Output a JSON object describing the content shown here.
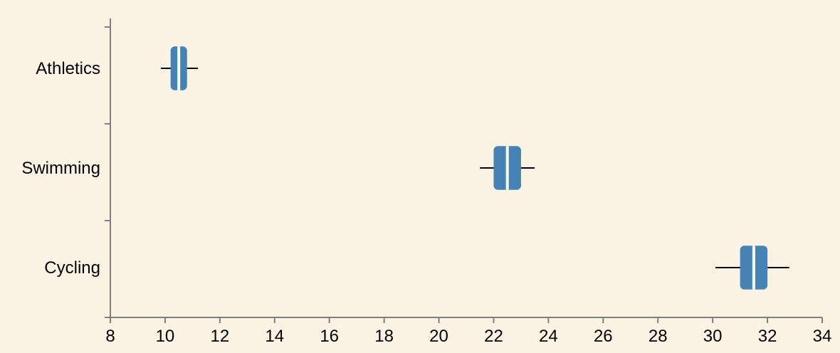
{
  "chart_data": {
    "type": "box",
    "orientation": "horizontal",
    "title": "",
    "xlabel": "",
    "ylabel": "",
    "xlim": [
      8,
      34
    ],
    "x_ticks": [
      8,
      10,
      12,
      14,
      16,
      18,
      20,
      22,
      24,
      26,
      28,
      30,
      32,
      34
    ],
    "grid": false,
    "categories": [
      "Athletics",
      "Swimming",
      "Cycling"
    ],
    "boxes": [
      {
        "category": "Athletics",
        "whisker_low": 9.85,
        "q1": 10.2,
        "median": 10.5,
        "q3": 10.8,
        "whisker_high": 11.2
      },
      {
        "category": "Swimming",
        "whisker_low": 21.5,
        "q1": 22.0,
        "median": 22.5,
        "q3": 23.0,
        "whisker_high": 23.5
      },
      {
        "category": "Cycling",
        "whisker_low": 30.1,
        "q1": 31.0,
        "median": 31.5,
        "q3": 32.0,
        "whisker_high": 32.8
      }
    ],
    "box_color": "#4682b4",
    "median_color": "#ffffff",
    "whisker_color": "#000000",
    "axis_color": "#7f7f7f",
    "background": "#fdf3e4"
  }
}
